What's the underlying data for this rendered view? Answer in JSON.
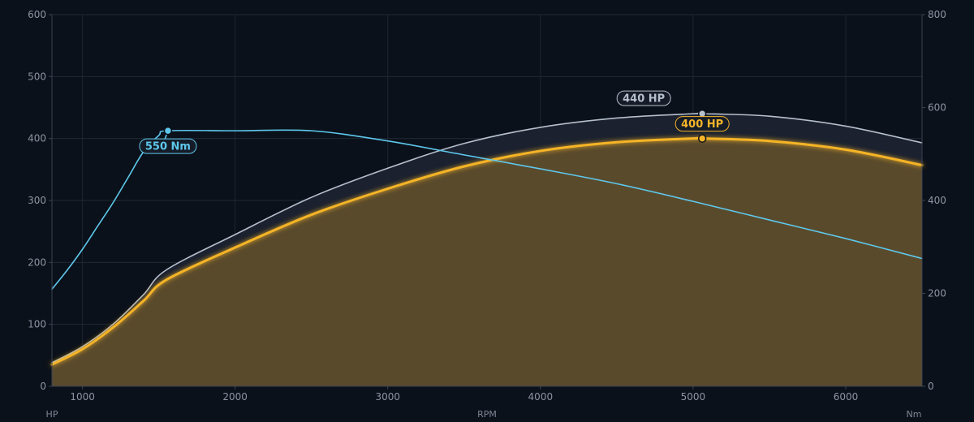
{
  "chart_data": {
    "type": "line",
    "title": "",
    "xlabel": "RPM",
    "ylabel_left": "HP",
    "ylabel_right": "Nm",
    "xlim": [
      800,
      6500
    ],
    "ylim_left": [
      0,
      600
    ],
    "ylim_right": [
      0,
      800
    ],
    "x_ticks": [
      1000,
      2000,
      3000,
      4000,
      5000,
      6000
    ],
    "y_left_ticks": [
      0,
      100,
      200,
      300,
      400,
      500,
      600
    ],
    "y_right_ticks": [
      0,
      200,
      400,
      600,
      800
    ],
    "grid": true,
    "series": [
      {
        "name": "",
        "axis": "left",
        "color": "#b6bfcc",
        "x": [
          800,
          1000,
          1200,
          1400,
          1550,
          2000,
          2500,
          3000,
          3500,
          4000,
          4500,
          5000,
          5060,
          5500,
          6000,
          6500
        ],
        "y": [
          38,
          64,
          100,
          148,
          188,
          245,
          305,
          352,
          392,
          418,
          433,
          440,
          440,
          436,
          420,
          393
        ]
      },
      {
        "name": "",
        "axis": "left",
        "color": "#f5b428",
        "fill": true,
        "x": [
          800,
          1000,
          1200,
          1400,
          1550,
          2000,
          2500,
          3000,
          3500,
          4000,
          4500,
          5000,
          5060,
          5500,
          6000,
          6500
        ],
        "y": [
          35,
          60,
          95,
          138,
          172,
          224,
          277,
          319,
          355,
          380,
          394,
          400,
          400,
          396,
          382,
          357
        ]
      },
      {
        "name": "",
        "axis": "right",
        "color": "#5ec8ec",
        "x": [
          800,
          900,
          1000,
          1100,
          1200,
          1300,
          1400,
          1500,
          1560,
          2000,
          2500,
          3000,
          3500,
          4000,
          4500,
          5000,
          5500,
          6000,
          6500
        ],
        "y": [
          209,
          250,
          295,
          345,
          395,
          450,
          505,
          540,
          550,
          550,
          550,
          528,
          498,
          468,
          436,
          398,
          358,
          318,
          275
        ]
      }
    ],
    "annotations": [
      {
        "label": "440 HP",
        "series": 0,
        "x": 5060,
        "y": 440
      },
      {
        "label": "400 HP",
        "series": 1,
        "x": 5060,
        "y": 400
      },
      {
        "label": "550 Nm",
        "series": 2,
        "x": 1560,
        "y": 550
      }
    ]
  }
}
